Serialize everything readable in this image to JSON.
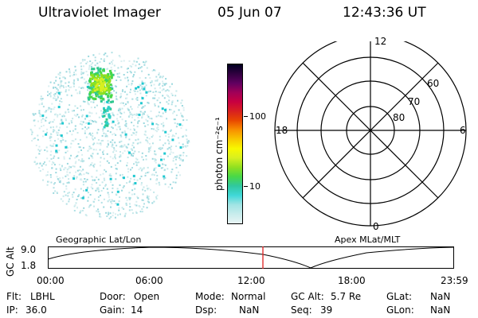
{
  "header": {
    "title": "Ultraviolet Imager",
    "date": "05 Jun 07",
    "time": "12:43:36 UT"
  },
  "colorbar": {
    "label": "photon cm⁻²s⁻¹",
    "ticks": [
      "100",
      "10"
    ],
    "colors": [
      "#e8f4f4",
      "#c8ecec",
      "#a0e4e4",
      "#40d8d8",
      "#30c8a0",
      "#48d848",
      "#90e020",
      "#d8f020",
      "#f8f800",
      "#f8c800",
      "#f89000",
      "#e84800",
      "#d82020",
      "#c80040",
      "#a00058",
      "#600060",
      "#300040",
      "#000020"
    ]
  },
  "polar": {
    "labels": {
      "top": "12",
      "bottom": "0",
      "left": "18",
      "right": "6",
      "lat_60": "60",
      "lat_70": "70",
      "lat_80": "80"
    }
  },
  "timeline": {
    "left_label": "Geographic Lat/Lon",
    "right_label": "Apex MLat/MLT",
    "axis_title": "GC Alt",
    "y_top": "9.0",
    "y_bottom": "1.8",
    "x_ticks": [
      "00:00",
      "06:00",
      "12:00",
      "18:00",
      "23:59"
    ],
    "marker_color": "#e02020"
  },
  "footer": {
    "flt_label": "Flt:",
    "flt_value": "LBHL",
    "ip_label": "IP:",
    "ip_value": "36.0",
    "door_label": "Door:",
    "door_value": "Open",
    "gain_label": "Gain:",
    "gain_value": "14",
    "mode_label": "Mode:",
    "mode_value": "Normal",
    "dsp_label": "Dsp:",
    "dsp_value": "NaN",
    "gcalt_label": "GC Alt:",
    "gcalt_value": "5.7 Re",
    "seq_label": "Seq:",
    "seq_value": "39",
    "glat_label": "GLat:",
    "glat_value": "NaN",
    "glon_label": "GLon:",
    "glon_value": "NaN"
  }
}
